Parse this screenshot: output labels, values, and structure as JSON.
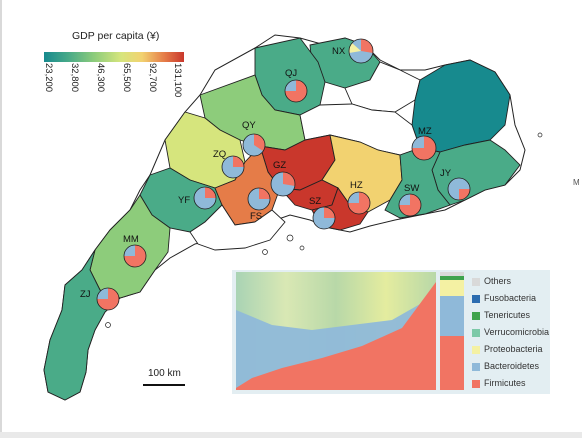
{
  "legend": {
    "title": "GDP per capita (¥)",
    "ticks": [
      "23,200",
      "32,800",
      "46,300",
      "65,500",
      "92,700",
      "131,100"
    ]
  },
  "colors": {
    "low": "#178a8e",
    "mid_low": "#4aab88",
    "mid": "#8dcc7b",
    "mid_high": "#d6e57d",
    "high": "#f2d270",
    "very_high": "#e57c48",
    "top": "#c9372c"
  },
  "cities": [
    {
      "code": "NX"
    },
    {
      "code": "QJ"
    },
    {
      "code": "QY"
    },
    {
      "code": "MZ"
    },
    {
      "code": "ZQ"
    },
    {
      "code": "GZ"
    },
    {
      "code": "JY"
    },
    {
      "code": "HZ"
    },
    {
      "code": "SW"
    },
    {
      "code": "YF"
    },
    {
      "code": "FS"
    },
    {
      "code": "SZ"
    },
    {
      "code": "MM"
    },
    {
      "code": "ZJ"
    }
  ],
  "scale_bar": "100 km",
  "inset": {
    "legend": [
      {
        "label": "Others",
        "color": "#d9d9d9"
      },
      {
        "label": "Fusobacteria",
        "color": "#2b6cb0"
      },
      {
        "label": "Tenericutes",
        "color": "#3fa34d"
      },
      {
        "label": "Verrucomicrobia",
        "color": "#7cc9a8"
      },
      {
        "label": "Proteobacteria",
        "color": "#f4f1a3"
      },
      {
        "label": "Bacteroidetes",
        "color": "#8fb9d9"
      },
      {
        "label": "Firmicutes",
        "color": "#f17463"
      }
    ]
  },
  "edge_letter": "M"
}
